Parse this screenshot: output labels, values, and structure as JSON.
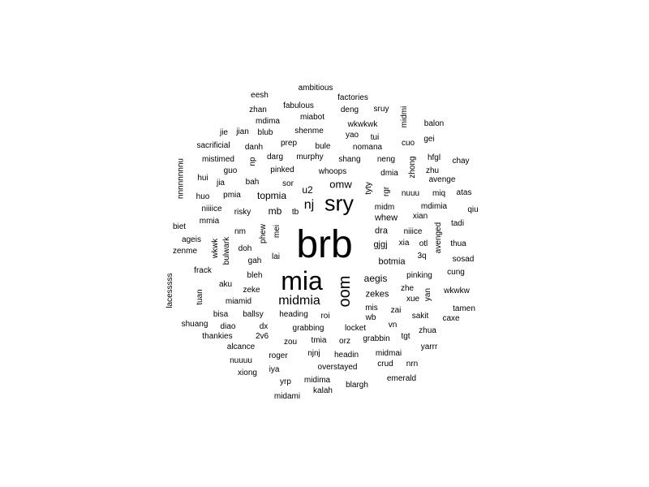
{
  "word_cloud": {
    "words": [
      "brb",
      "mia",
      "sry",
      "oom",
      "midmia",
      "nj",
      "omw",
      "topmia",
      "u2",
      "mb",
      "aegis",
      "botmia",
      "gjgj",
      "whew",
      "dra",
      "midm",
      "zekes",
      "ambitious",
      "eesh",
      "factories",
      "zhan",
      "fabulous",
      "deng",
      "sruy",
      "midmi",
      "mdima",
      "miabot",
      "wkwkwk",
      "balon",
      "jie",
      "jian",
      "blub",
      "shenme",
      "yao",
      "tui",
      "cuo",
      "gei",
      "sacrificial",
      "danh",
      "prep",
      "bule",
      "nomana",
      "mistimed",
      "darg",
      "murphy",
      "shang",
      "neng",
      "hfgl",
      "chay",
      "nuuuuuuuu",
      "np",
      "guo",
      "pinked",
      "whoops",
      "dmia",
      "zhong",
      "zhu",
      "hui",
      "jia",
      "bah",
      "sor",
      "avenge",
      "tyty",
      "rgr",
      "nuuu",
      "miq",
      "atas",
      "huo",
      "pmia",
      "niiiice",
      "mdimia",
      "qiu",
      "risky",
      "tb",
      "xian",
      "mmia",
      "mei",
      "phew",
      "biet",
      "nm",
      "niiice",
      "tadi",
      "ageis",
      "wkwk",
      "bulwark",
      "xia",
      "otl",
      "thua",
      "zenme",
      "doh",
      "avenged",
      "3q",
      "sosad",
      "gah",
      "lai",
      "frack",
      "cung",
      "bleh",
      "pinking",
      "lacesssss",
      "aku",
      "tuan",
      "zeke",
      "zhe",
      "yan",
      "wkwkw",
      "miamid",
      "xue",
      "mis",
      "zai",
      "tamen",
      "bisa",
      "ballsy",
      "heading",
      "roi",
      "wb",
      "sakit",
      "caxe",
      "shuang",
      "diao",
      "dx",
      "grabbing",
      "locket",
      "vn",
      "zhua",
      "thankies",
      "2v6",
      "zou",
      "tmia",
      "orz",
      "grabbin",
      "tgt",
      "alcance",
      "yarrr",
      "roger",
      "njnj",
      "headin",
      "midmai",
      "nuuuu",
      "crud",
      "nrn",
      "xiong",
      "iya",
      "overstayed",
      "emerald",
      "yrp",
      "midima",
      "blargh",
      "kalah",
      "midami"
    ]
  }
}
